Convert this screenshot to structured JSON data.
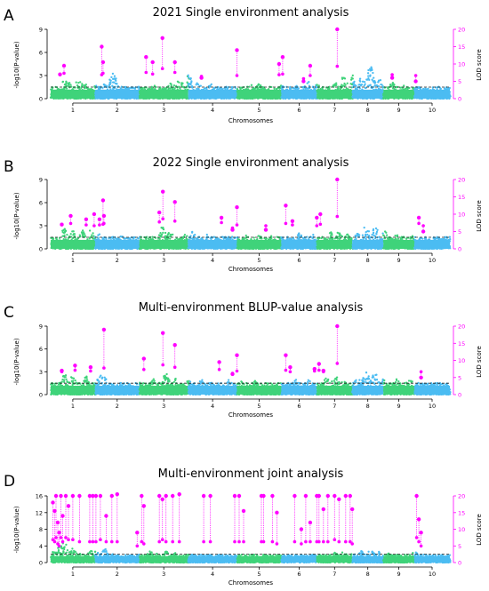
{
  "figure": {
    "colors": {
      "green": "#3fd37a",
      "blue": "#4bbcf2",
      "lod": "#ff00ff",
      "threshold": "#222222",
      "axis": "#000000"
    },
    "chromosomes": [
      "1",
      "2",
      "3",
      "4",
      "5",
      "6",
      "7",
      "8",
      "9",
      "10"
    ]
  },
  "chart_data": [
    {
      "type": "scatter",
      "panel_letter": "A",
      "title": "2021 Single environment analysis",
      "xlabel": "Chromosomes",
      "ylabel_left": "-log10(P-value)",
      "ylabel_right": "LOD score",
      "ylim_left": [
        0,
        9
      ],
      "yticks_left": [
        0,
        3,
        6,
        9
      ],
      "ylim_right": [
        0,
        20
      ],
      "yticks_right": [
        0,
        5,
        10,
        15,
        20
      ],
      "threshold": 1.5,
      "background_peak_scale": 3.5,
      "background_peaks": [
        [
          3,
          1.6
        ],
        [
          4,
          1.5
        ],
        [
          6,
          1.4
        ],
        [
          7,
          1.7
        ],
        [
          8,
          1.2
        ],
        [
          10,
          1.1
        ],
        [
          12,
          1.3
        ],
        [
          14,
          2.2
        ],
        [
          17,
          0.9
        ],
        [
          20,
          1.0
        ],
        [
          23,
          1.2
        ],
        [
          27,
          1.5
        ],
        [
          29,
          1.7
        ],
        [
          31,
          1.9
        ],
        [
          33,
          1.4
        ],
        [
          36,
          1.2
        ],
        [
          39,
          0.9
        ],
        [
          42,
          1.0
        ],
        [
          45,
          1.1
        ],
        [
          47,
          1.3
        ],
        [
          50,
          1.0
        ],
        [
          52,
          1.1
        ],
        [
          55,
          1.2
        ],
        [
          58,
          1.4
        ],
        [
          60,
          1.2
        ],
        [
          64,
          1.4
        ],
        [
          66,
          1.9
        ],
        [
          68,
          2.0
        ],
        [
          70,
          1.8
        ],
        [
          72,
          2.8
        ],
        [
          74,
          1.6
        ],
        [
          77,
          1.4
        ],
        [
          80,
          1.2
        ],
        [
          83,
          1.0
        ]
      ],
      "lod_markers": [
        {
          "x": 2.1,
          "lod": 7.0,
          "y": 3.1
        },
        {
          "x": 3.0,
          "lod": 9.5,
          "y": 3.3
        },
        {
          "x": 11.5,
          "lod": 15.0,
          "y": 3.1
        },
        {
          "x": 11.8,
          "lod": 10.5,
          "y": 3.3
        },
        {
          "x": 21.5,
          "lod": 12.0,
          "y": 3.4
        },
        {
          "x": 23.0,
          "lod": 10.5,
          "y": 3.2
        },
        {
          "x": 25.2,
          "lod": 17.5,
          "y": 3.9
        },
        {
          "x": 28.0,
          "lod": 10.5,
          "y": 3.4
        },
        {
          "x": 34.0,
          "lod": 6.0,
          "y": 2.9
        },
        {
          "x": 42.0,
          "lod": 14.0,
          "y": 3.0
        },
        {
          "x": 51.5,
          "lod": 10.0,
          "y": 3.1
        },
        {
          "x": 52.3,
          "lod": 12.0,
          "y": 3.2
        },
        {
          "x": 57.0,
          "lod": 5.0,
          "y": 2.6
        },
        {
          "x": 58.5,
          "lod": 9.5,
          "y": 3.0
        },
        {
          "x": 64.6,
          "lod": 20.0,
          "y": 4.2
        },
        {
          "x": 77.0,
          "lod": 6.0,
          "y": 3.1
        },
        {
          "x": 82.3,
          "lod": 5.0,
          "y": 3.0
        }
      ]
    },
    {
      "type": "scatter",
      "panel_letter": "B",
      "title": "2022 Single environment analysis",
      "xlabel": "Chromosomes",
      "ylabel_left": "-log10(P-value)",
      "ylabel_right": "LOD score",
      "ylim_left": [
        0,
        9
      ],
      "yticks_left": [
        0,
        3,
        6,
        9
      ],
      "ylim_right": [
        0,
        20
      ],
      "yticks_right": [
        0,
        5,
        10,
        15,
        20
      ],
      "threshold": 1.5,
      "background_peak_scale": 3.5,
      "background_peaks": [
        [
          3,
          1.7
        ],
        [
          5,
          1.6
        ],
        [
          7,
          1.5
        ],
        [
          9,
          1.6
        ],
        [
          11,
          1.2
        ],
        [
          13,
          1.0
        ],
        [
          16,
          1.1
        ],
        [
          19,
          1.0
        ],
        [
          22,
          1.2
        ],
        [
          25,
          1.9
        ],
        [
          27,
          1.6
        ],
        [
          30,
          1.3
        ],
        [
          32,
          1.4
        ],
        [
          35,
          1.2
        ],
        [
          38,
          1.0
        ],
        [
          41,
          1.0
        ],
        [
          44,
          1.1
        ],
        [
          47,
          1.2
        ],
        [
          50,
          1.1
        ],
        [
          53,
          1.0
        ],
        [
          56,
          1.3
        ],
        [
          59,
          1.2
        ],
        [
          63,
          1.4
        ],
        [
          65,
          1.5
        ],
        [
          67,
          1.3
        ],
        [
          69,
          1.5
        ],
        [
          71,
          2.0
        ],
        [
          73,
          1.8
        ],
        [
          75,
          1.5
        ],
        [
          78,
          1.2
        ],
        [
          81,
          1.4
        ],
        [
          83,
          1.0
        ]
      ],
      "lod_markers": [
        {
          "x": 2.5,
          "lod": 7.0,
          "y": 3.2
        },
        {
          "x": 4.5,
          "lod": 9.5,
          "y": 3.3
        },
        {
          "x": 8.0,
          "lod": 8.5,
          "y": 3.1
        },
        {
          "x": 9.8,
          "lod": 10.0,
          "y": 3.0
        },
        {
          "x": 11.0,
          "lod": 8.5,
          "y": 3.1
        },
        {
          "x": 11.8,
          "lod": 14.0,
          "y": 3.2
        },
        {
          "x": 12.0,
          "lod": 9.5,
          "y": 3.3
        },
        {
          "x": 24.5,
          "lod": 10.5,
          "y": 3.5
        },
        {
          "x": 25.3,
          "lod": 16.5,
          "y": 3.9
        },
        {
          "x": 28.0,
          "lod": 13.5,
          "y": 3.6
        },
        {
          "x": 38.5,
          "lod": 9.0,
          "y": 3.4
        },
        {
          "x": 41.0,
          "lod": 5.5,
          "y": 2.7
        },
        {
          "x": 42.0,
          "lod": 12.0,
          "y": 3.1
        },
        {
          "x": 48.5,
          "lod": 5.5,
          "y": 3.0
        },
        {
          "x": 53.0,
          "lod": 12.5,
          "y": 3.3
        },
        {
          "x": 54.5,
          "lod": 8.0,
          "y": 3.1
        },
        {
          "x": 60.0,
          "lod": 9.0,
          "y": 3.0
        },
        {
          "x": 60.8,
          "lod": 10.0,
          "y": 3.2
        },
        {
          "x": 64.6,
          "lod": 20.0,
          "y": 4.2
        },
        {
          "x": 83.0,
          "lod": 9.0,
          "y": 3.3
        },
        {
          "x": 84.0,
          "lod": 5.0,
          "y": 3.0
        }
      ]
    },
    {
      "type": "scatter",
      "panel_letter": "C",
      "title": "Multi-environment BLUP-value analysis",
      "xlabel": "Chromosomes",
      "ylabel_left": "-log10(P-value)",
      "ylabel_right": "LOD score",
      "ylim_left": [
        0,
        9
      ],
      "yticks_left": [
        0,
        3,
        6,
        9
      ],
      "ylim_right": [
        0,
        20
      ],
      "yticks_right": [
        0,
        5,
        10,
        15,
        20
      ],
      "threshold": 1.5,
      "background_peak_scale": 3.5,
      "background_peaks": [
        [
          3,
          1.7
        ],
        [
          5,
          1.6
        ],
        [
          8,
          1.5
        ],
        [
          11,
          1.7
        ],
        [
          12,
          1.6
        ],
        [
          14,
          1.1
        ],
        [
          17,
          1.0
        ],
        [
          20,
          1.0
        ],
        [
          23,
          1.3
        ],
        [
          26,
          1.8
        ],
        [
          28,
          1.5
        ],
        [
          31,
          1.3
        ],
        [
          34,
          1.2
        ],
        [
          37,
          1.0
        ],
        [
          40,
          1.2
        ],
        [
          43,
          1.1
        ],
        [
          46,
          1.2
        ],
        [
          49,
          1.0
        ],
        [
          52,
          1.1
        ],
        [
          55,
          1.3
        ],
        [
          58,
          1.2
        ],
        [
          62,
          1.4
        ],
        [
          64,
          1.6
        ],
        [
          66,
          1.3
        ],
        [
          69,
          1.5
        ],
        [
          71,
          2.1
        ],
        [
          73,
          1.8
        ],
        [
          75,
          1.4
        ],
        [
          78,
          1.3
        ],
        [
          81,
          1.3
        ],
        [
          83,
          1.0
        ]
      ],
      "lod_markers": [
        {
          "x": 2.5,
          "lod": 7.0,
          "y": 3.0
        },
        {
          "x": 5.5,
          "lod": 8.5,
          "y": 3.2
        },
        {
          "x": 9.0,
          "lod": 8.0,
          "y": 3.1
        },
        {
          "x": 12.0,
          "lod": 19.0,
          "y": 3.5
        },
        {
          "x": 21.0,
          "lod": 10.5,
          "y": 3.3
        },
        {
          "x": 25.3,
          "lod": 18.0,
          "y": 3.9
        },
        {
          "x": 28.0,
          "lod": 14.5,
          "y": 3.6
        },
        {
          "x": 38.0,
          "lod": 9.5,
          "y": 3.3
        },
        {
          "x": 41.0,
          "lod": 6.0,
          "y": 2.8
        },
        {
          "x": 42.0,
          "lod": 11.5,
          "y": 3.1
        },
        {
          "x": 53.0,
          "lod": 11.5,
          "y": 3.2
        },
        {
          "x": 54.0,
          "lod": 8.0,
          "y": 3.0
        },
        {
          "x": 59.5,
          "lod": 7.5,
          "y": 3.1
        },
        {
          "x": 60.5,
          "lod": 9.0,
          "y": 3.2
        },
        {
          "x": 61.5,
          "lod": 7.0,
          "y": 3.0
        },
        {
          "x": 64.6,
          "lod": 20.0,
          "y": 4.1
        },
        {
          "x": 83.5,
          "lod": 5.0,
          "y": 3.0
        }
      ]
    },
    {
      "type": "scatter",
      "panel_letter": "D",
      "title": "Multi-environment joint analysis",
      "xlabel": "Chromosomes",
      "ylabel_left": "-log10(P-value)",
      "ylabel_right": "LOD score",
      "ylim_left": [
        0,
        16
      ],
      "yticks_left": [
        0,
        4,
        8,
        12,
        16
      ],
      "ylim_right": [
        0,
        20
      ],
      "yticks_right": [
        0,
        5,
        10,
        15,
        20
      ],
      "threshold": 2.0,
      "background_peak_scale": 4.5,
      "background_peaks": [
        [
          1,
          2.0
        ],
        [
          2,
          2.6
        ],
        [
          3,
          3.2
        ],
        [
          5,
          2.2
        ],
        [
          7,
          1.5
        ],
        [
          9,
          1.9
        ],
        [
          10,
          1.7
        ],
        [
          12,
          2.2
        ],
        [
          14,
          1.4
        ],
        [
          17,
          1.2
        ],
        [
          20,
          1.3
        ],
        [
          22,
          2.0
        ],
        [
          24,
          1.4
        ],
        [
          26,
          1.7
        ],
        [
          28,
          1.5
        ],
        [
          31,
          1.3
        ],
        [
          34,
          1.2
        ],
        [
          37,
          1.0
        ],
        [
          40,
          1.2
        ],
        [
          43,
          1.1
        ],
        [
          46,
          1.3
        ],
        [
          49,
          1.2
        ],
        [
          52,
          1.1
        ],
        [
          55,
          1.3
        ],
        [
          58,
          1.2
        ],
        [
          62,
          1.3
        ],
        [
          64,
          1.5
        ],
        [
          66,
          1.6
        ],
        [
          68,
          1.6
        ],
        [
          70,
          1.8
        ],
        [
          72,
          2.1
        ],
        [
          74,
          1.7
        ],
        [
          76,
          1.4
        ],
        [
          79,
          1.2
        ],
        [
          82,
          1.6
        ],
        [
          83,
          1.4
        ]
      ],
      "lod_markers": [
        {
          "x": 0.5,
          "lod": 18.0,
          "y": 5.5
        },
        {
          "x": 0.9,
          "lod": 15.5,
          "y": 5.0
        },
        {
          "x": 1.2,
          "lod": 20.0,
          "y": 6.0
        },
        {
          "x": 1.6,
          "lod": 12.0,
          "y": 4.5
        },
        {
          "x": 1.9,
          "lod": 9.0,
          "y": 4.0
        },
        {
          "x": 2.3,
          "lod": 20.0,
          "y": 6.0
        },
        {
          "x": 2.7,
          "lod": 14.0,
          "y": 5.0
        },
        {
          "x": 3.4,
          "lod": 20.0,
          "y": 6.0
        },
        {
          "x": 4.0,
          "lod": 17.0,
          "y": 5.5
        },
        {
          "x": 5.0,
          "lod": 20.0,
          "y": 5.5
        },
        {
          "x": 6.5,
          "lod": 20.0,
          "y": 5.0
        },
        {
          "x": 8.8,
          "lod": 20.0,
          "y": 5.0
        },
        {
          "x": 9.5,
          "lod": 20.0,
          "y": 5.0
        },
        {
          "x": 10.2,
          "lod": 20.0,
          "y": 5.0
        },
        {
          "x": 11.2,
          "lod": 20.0,
          "y": 5.5
        },
        {
          "x": 12.5,
          "lod": 14.0,
          "y": 5.0
        },
        {
          "x": 13.8,
          "lod": 20.0,
          "y": 5.0
        },
        {
          "x": 15.0,
          "lod": 20.5,
          "y": 5.0
        },
        {
          "x": 19.5,
          "lod": 9.0,
          "y": 4.0
        },
        {
          "x": 20.5,
          "lod": 20.0,
          "y": 5.0
        },
        {
          "x": 21.0,
          "lod": 17.0,
          "y": 4.5
        },
        {
          "x": 24.5,
          "lod": 20.0,
          "y": 5.0
        },
        {
          "x": 25.2,
          "lod": 19.0,
          "y": 5.5
        },
        {
          "x": 26.0,
          "lod": 20.0,
          "y": 5.0
        },
        {
          "x": 27.5,
          "lod": 20.0,
          "y": 5.0
        },
        {
          "x": 29.0,
          "lod": 20.5,
          "y": 5.0
        },
        {
          "x": 34.5,
          "lod": 20.0,
          "y": 5.0
        },
        {
          "x": 36.0,
          "lod": 20.0,
          "y": 5.0
        },
        {
          "x": 41.5,
          "lod": 20.0,
          "y": 5.0
        },
        {
          "x": 42.5,
          "lod": 20.0,
          "y": 5.0
        },
        {
          "x": 43.5,
          "lod": 15.5,
          "y": 5.0
        },
        {
          "x": 47.5,
          "lod": 20.0,
          "y": 5.0
        },
        {
          "x": 48.0,
          "lod": 20.0,
          "y": 5.0
        },
        {
          "x": 50.0,
          "lod": 20.0,
          "y": 5.0
        },
        {
          "x": 51.0,
          "lod": 15.0,
          "y": 4.5
        },
        {
          "x": 55.0,
          "lod": 20.0,
          "y": 5.0
        },
        {
          "x": 56.5,
          "lod": 10.0,
          "y": 4.5
        },
        {
          "x": 57.5,
          "lod": 20.0,
          "y": 5.0
        },
        {
          "x": 58.5,
          "lod": 12.0,
          "y": 5.0
        },
        {
          "x": 60.0,
          "lod": 20.0,
          "y": 5.0
        },
        {
          "x": 60.5,
          "lod": 20.0,
          "y": 5.0
        },
        {
          "x": 61.5,
          "lod": 16.0,
          "y": 5.0
        },
        {
          "x": 62.5,
          "lod": 20.0,
          "y": 5.0
        },
        {
          "x": 64.0,
          "lod": 20.0,
          "y": 5.5
        },
        {
          "x": 65.0,
          "lod": 19.0,
          "y": 5.0
        },
        {
          "x": 66.5,
          "lod": 20.0,
          "y": 5.0
        },
        {
          "x": 67.5,
          "lod": 20.0,
          "y": 5.0
        },
        {
          "x": 68.0,
          "lod": 16.0,
          "y": 4.5
        },
        {
          "x": 82.5,
          "lod": 20.0,
          "y": 6.0
        },
        {
          "x": 83.0,
          "lod": 13.0,
          "y": 5.0
        },
        {
          "x": 83.5,
          "lod": 9.0,
          "y": 4.0
        }
      ]
    }
  ]
}
